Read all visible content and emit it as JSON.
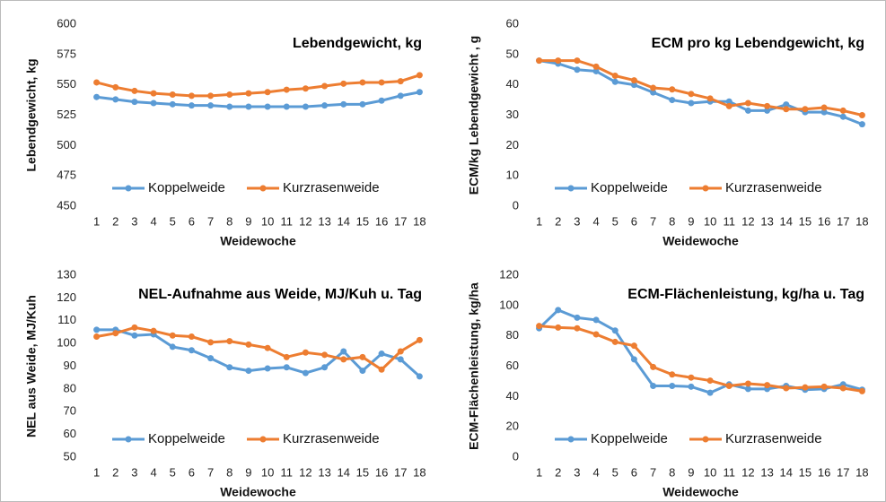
{
  "chart_data": [
    {
      "type": "line",
      "title": "Lebendgewicht, kg",
      "x_label": "Weidewoche",
      "y_label": "Lebendgewicht, kg",
      "categories": [
        "1",
        "2",
        "3",
        "4",
        "5",
        "6",
        "7",
        "8",
        "9",
        "10",
        "11",
        "12",
        "13",
        "14",
        "15",
        "16",
        "17",
        "18"
      ],
      "ylim": [
        450,
        600
      ],
      "yticks": [
        450,
        475,
        500,
        525,
        550,
        575,
        600
      ],
      "series": [
        {
          "name": "Koppelweide",
          "color": "#5b9bd5",
          "values": [
            540,
            538,
            536,
            535,
            534,
            533,
            533,
            532,
            532,
            532,
            532,
            532,
            533,
            534,
            534,
            537,
            541,
            544
          ]
        },
        {
          "name": "Kurzrasenweide",
          "color": "#ed7d31",
          "values": [
            552,
            548,
            545,
            543,
            542,
            541,
            541,
            542,
            543,
            544,
            546,
            547,
            549,
            551,
            552,
            552,
            553,
            558
          ]
        }
      ]
    },
    {
      "type": "line",
      "title": "ECM pro kg Lebendgewicht, kg",
      "x_label": "Weidewoche",
      "y_label": "ECM/kg Lebendgewicht , g",
      "categories": [
        "1",
        "2",
        "3",
        "4",
        "5",
        "6",
        "7",
        "8",
        "9",
        "10",
        "11",
        "12",
        "13",
        "14",
        "15",
        "16",
        "17",
        "18"
      ],
      "ylim": [
        0,
        60
      ],
      "yticks": [
        0,
        10,
        20,
        30,
        40,
        50,
        60
      ],
      "series": [
        {
          "name": "Koppelweide",
          "color": "#5b9bd5",
          "values": [
            48,
            47,
            45,
            44.5,
            41,
            40,
            37.5,
            35,
            34,
            34.5,
            34.5,
            31.5,
            31.5,
            33.5,
            31,
            31,
            29.5,
            27
          ]
        },
        {
          "name": "Kurzrasenweide",
          "color": "#ed7d31",
          "values": [
            48,
            48,
            48,
            46,
            43,
            41.5,
            39,
            38.5,
            37,
            35.5,
            33,
            34,
            33,
            32,
            32,
            32.5,
            31.5,
            30
          ]
        }
      ]
    },
    {
      "type": "line",
      "title": "NEL-Aufnahme aus Weide, MJ/Kuh u. Tag",
      "x_label": "Weidewoche",
      "y_label": "NEL aus Weide, MJ/Kuh",
      "categories": [
        "1",
        "2",
        "3",
        "4",
        "5",
        "6",
        "7",
        "8",
        "9",
        "10",
        "11",
        "12",
        "13",
        "14",
        "15",
        "16",
        "17",
        "18"
      ],
      "ylim": [
        50,
        130
      ],
      "yticks": [
        50,
        60,
        70,
        80,
        90,
        100,
        110,
        120,
        130
      ],
      "series": [
        {
          "name": "Koppelweide",
          "color": "#5b9bd5",
          "values": [
            106,
            106,
            103.5,
            104,
            98.5,
            97,
            93.5,
            89.5,
            88,
            89,
            89.5,
            87,
            89.5,
            96.5,
            88,
            95.5,
            93,
            85.5
          ]
        },
        {
          "name": "Kurzrasenweide",
          "color": "#ed7d31",
          "values": [
            103,
            104.5,
            107,
            105.5,
            103.5,
            103,
            100.5,
            101,
            99.5,
            98,
            94,
            96,
            95,
            93,
            94,
            88.5,
            96.5,
            101.5
          ]
        }
      ]
    },
    {
      "type": "line",
      "title": "ECM-Flächenleistung, kg/ha u. Tag",
      "x_label": "Weidewoche",
      "y_label": "ECM-Flächenleistung, kg/ha",
      "categories": [
        "1",
        "2",
        "3",
        "4",
        "5",
        "6",
        "7",
        "8",
        "9",
        "10",
        "11",
        "12",
        "13",
        "14",
        "15",
        "16",
        "17",
        "18"
      ],
      "ylim": [
        0,
        120
      ],
      "yticks": [
        0,
        20,
        40,
        60,
        80,
        100,
        120
      ],
      "series": [
        {
          "name": "Koppelweide",
          "color": "#5b9bd5",
          "values": [
            85,
            97,
            92,
            90.5,
            83.5,
            64.5,
            47,
            47,
            46.5,
            42.5,
            48,
            45,
            45,
            47,
            44.5,
            45,
            48,
            44.5
          ]
        },
        {
          "name": "Kurzrasenweide",
          "color": "#ed7d31",
          "values": [
            86.5,
            85.5,
            85,
            81,
            76,
            73.5,
            59.5,
            54.5,
            52.5,
            50.5,
            47,
            48.5,
            47.5,
            45.5,
            46,
            46.5,
            45.5,
            43.5
          ]
        }
      ]
    }
  ]
}
